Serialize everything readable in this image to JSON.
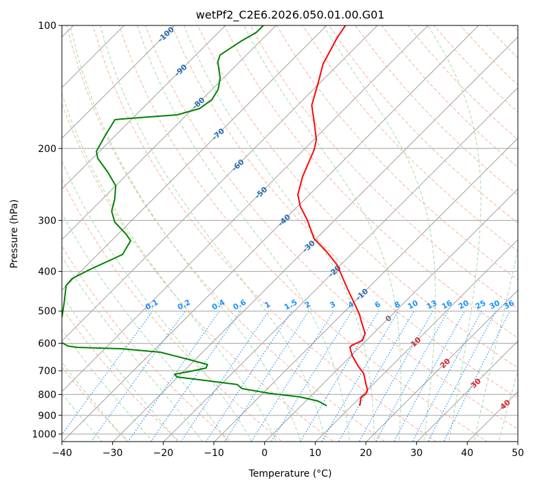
{
  "chart_data": {
    "type": "line",
    "subtype": "skew-t log-p",
    "title": "wetPf2_C2E6.2026.050.01.00.G01",
    "xlabel": "Temperature (°C)",
    "ylabel": "Pressure (hPa)",
    "xlim": [
      -40,
      50
    ],
    "ylim": [
      1043,
      100
    ],
    "x_ticks": [
      "−40",
      "−30",
      "−20",
      "−10",
      "0",
      "10",
      "20",
      "30",
      "40",
      "50"
    ],
    "x_tick_values": [
      -40,
      -30,
      -20,
      -10,
      0,
      10,
      20,
      30,
      40,
      50
    ],
    "y_ticks": [
      "100",
      "200",
      "300",
      "400",
      "500",
      "600",
      "700",
      "800",
      "900",
      "1000"
    ],
    "y_tick_values": [
      100,
      200,
      300,
      400,
      500,
      600,
      700,
      800,
      900,
      1000
    ],
    "grid": true,
    "colors": {
      "temperature": "#ff0000",
      "dewpoint": "#008000",
      "isotherm": "#a0a0a0",
      "dry_adiabat": "#f7a98e",
      "moist_adiabat": "#a8d8a8",
      "mixing_ratio": "#1e90ff",
      "isotherm_label_neg": "#2a6cb0",
      "isotherm_label_zero": "#707070",
      "isotherm_label_pos": "#d62728"
    },
    "series": [
      {
        "name": "temperature",
        "pressure": [
          100,
          107.2,
          124.3,
          137.9,
          156.8,
          174.1,
          190.3,
          201.0,
          234.6,
          259.5,
          277.3,
          299.5,
          332.6,
          356.6,
          385.4,
          441.3,
          482.5,
          509.5,
          529.6,
          567.8,
          590.2,
          606.5,
          613.6,
          642.8,
          683.9,
          711.0,
          750.6,
          780.3,
          795.6,
          814.3,
          853.1
        ],
        "temperature": [
          -66.3,
          -65.5,
          -63.1,
          -60.4,
          -57.2,
          -53.0,
          -49.5,
          -48.0,
          -44.9,
          -42.3,
          -39.5,
          -35.4,
          -30.4,
          -25.6,
          -20.7,
          -13.9,
          -9.3,
          -6.5,
          -4.8,
          -1.6,
          -0.8,
          -1.9,
          -1.9,
          0.2,
          3.6,
          6.0,
          8.3,
          10.0,
          10.4,
          10.2,
          11.6
        ]
      },
      {
        "name": "dewpoint",
        "pressure": [
          100,
          104.0,
          109.3,
          118.2,
          122.8,
          134.3,
          143.4,
          152.0,
          159.8,
          165.5,
          169.4,
          170.1,
          185.9,
          203.3,
          211.3,
          228.4,
          246.8,
          266.7,
          284.8,
          303.0,
          323.7,
          336.5,
          363.6,
          396.0,
          416.4,
          432.9,
          477.0,
          515.4,
          556.9,
          597.2,
          609.0,
          613.6,
          618.4,
          630.5,
          655.4,
          676.1,
          689.3,
          702.8,
          713.8,
          724.9,
          742.0,
          756.5,
          774.3,
          795.6,
          811.1,
          830.2,
          853.1
        ],
        "temperature": [
          -82.5,
          -82.5,
          -83.8,
          -85.2,
          -84.3,
          -80.7,
          -78.8,
          -78.0,
          -78.7,
          -81.9,
          -92.0,
          -93.2,
          -92.0,
          -90.6,
          -89.0,
          -84.3,
          -80.0,
          -77.5,
          -75.8,
          -73.0,
          -68.5,
          -66.2,
          -65.1,
          -68.6,
          -70.3,
          -70.1,
          -67.1,
          -64.8,
          -63.5,
          -59.7,
          -57.8,
          -55.7,
          -46.7,
          -38.4,
          -31.7,
          -26.6,
          -26.2,
          -28.7,
          -31.2,
          -30.2,
          -22.8,
          -16.8,
          -15.0,
          -8.5,
          -2.0,
          2.4,
          5.1
        ]
      }
    ],
    "mixing_ratio_lines_gkg": [
      0.1,
      0.2,
      0.4,
      0.6,
      1,
      1.5,
      2,
      3,
      4,
      6,
      8,
      10,
      13,
      16,
      20,
      25,
      30,
      36
    ],
    "mixing_ratio_labels": [
      "0.1",
      "0.2",
      "0.4",
      "0.6",
      "1",
      "1.5",
      "2",
      "3",
      "4",
      "6",
      "8",
      "10",
      "13",
      "16",
      "20",
      "25",
      "30",
      "36"
    ],
    "isotherm_labels": [
      "-100",
      "-90",
      "-80",
      "-70",
      "-60",
      "-50",
      "-40",
      "-30",
      "-20",
      "-10",
      "0",
      "10",
      "20",
      "30",
      "40"
    ],
    "isotherm_label_values": [
      -100,
      -90,
      -80,
      -70,
      -60,
      -50,
      -40,
      -30,
      -20,
      -10,
      0,
      10,
      20,
      30,
      40
    ]
  }
}
